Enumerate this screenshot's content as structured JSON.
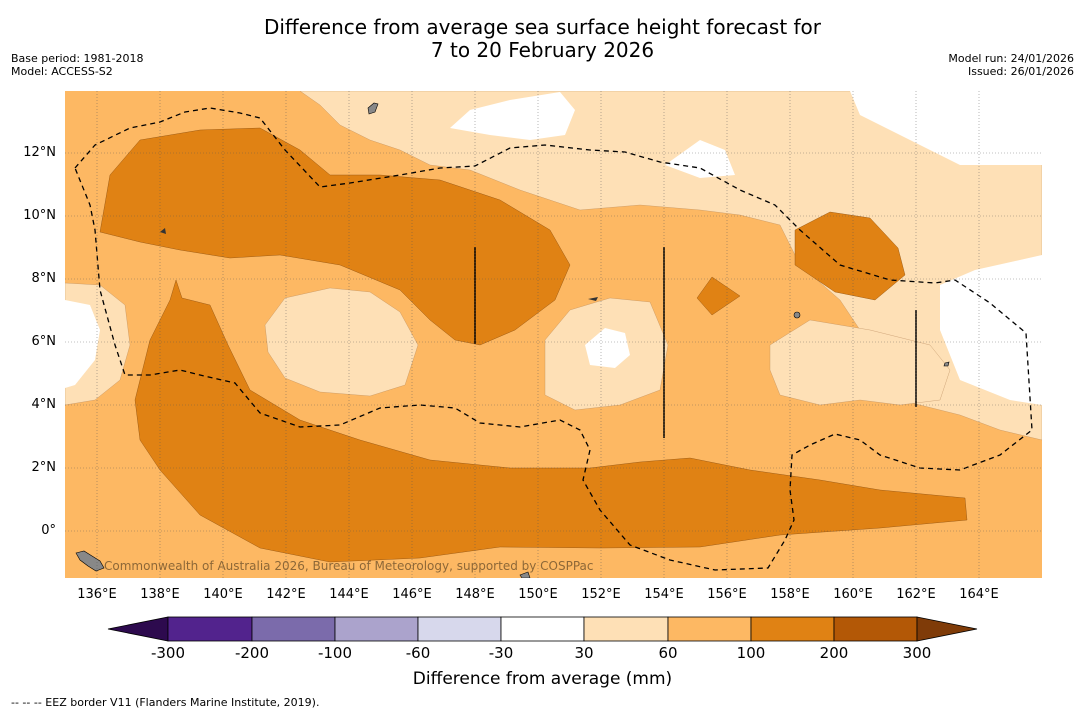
{
  "header": {
    "title_line1": "Difference from average sea surface height forecast for",
    "title_line2": "7 to 20 February 2026",
    "base_period": "Base period: 1981-2018",
    "model": "Model: ACCESS-S2",
    "model_run": "Model run: 24/01/2026",
    "issued": "Issued: 26/01/2026"
  },
  "map": {
    "lat_labels": [
      "12°N",
      "10°N",
      "8°N",
      "6°N",
      "4°N",
      "2°N",
      "0°"
    ],
    "lon_labels": [
      "136°E",
      "138°E",
      "140°E",
      "142°E",
      "144°E",
      "146°E",
      "148°E",
      "150°E",
      "152°E",
      "154°E",
      "156°E",
      "158°E",
      "160°E",
      "162°E",
      "164°E"
    ],
    "credit": "Commonwealth of Australia 2026, Bureau of Meteorology, supported by COSPPac",
    "ocean_color": "#ffffff",
    "land_color": "#888888"
  },
  "colorbar": {
    "labels": [
      "-300",
      "-200",
      "-100",
      "-60",
      "-30",
      "30",
      "60",
      "100",
      "200",
      "300"
    ],
    "colors": [
      "#2d0a4e",
      "#52238d",
      "#7b6bab",
      "#aba3cc",
      "#d7d8ec",
      "#ffffff",
      "#fee0b6",
      "#fdb863",
      "#e08214",
      "#b35806",
      "#7f3b08"
    ],
    "title": "Difference from average (mm)"
  },
  "footnote": "--  --  -- EEZ border V11 (Flanders Marine Institute, 2019)."
}
